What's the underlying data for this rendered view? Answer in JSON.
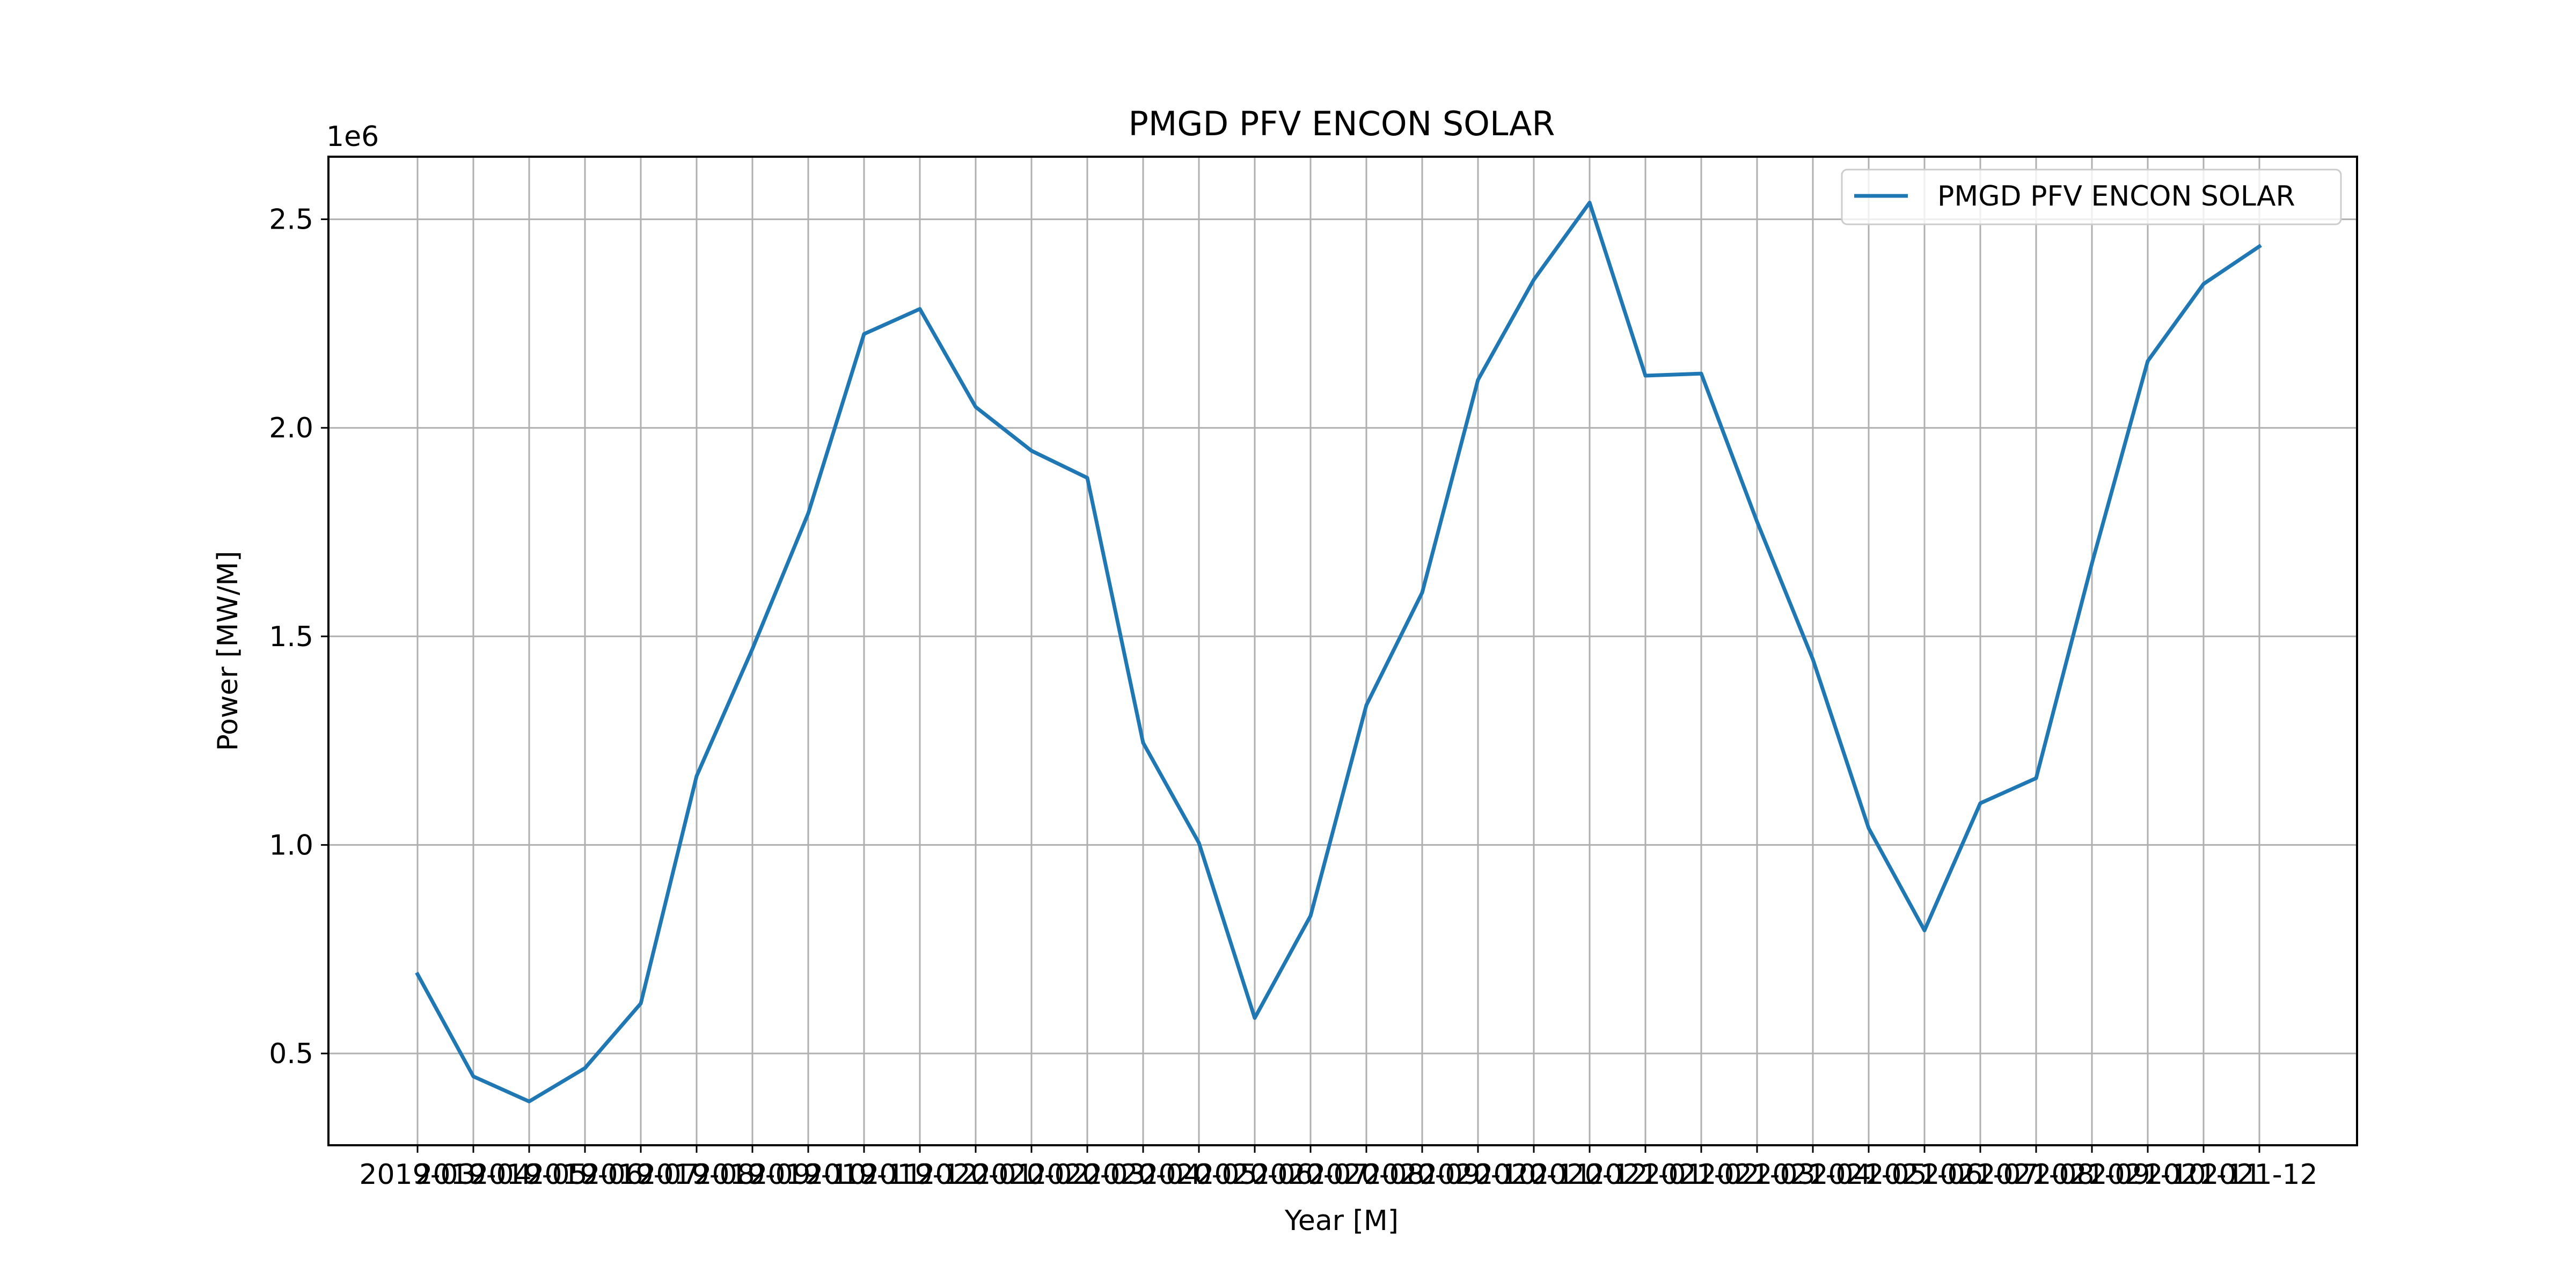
{
  "chart_data": {
    "type": "line",
    "title": "PMGD PFV ENCON SOLAR",
    "xlabel": "Year [M]",
    "ylabel": "Power [MW/M]",
    "y_offset_label": "1e6",
    "y_multiplier": 1000000,
    "ylim": [
      280000,
      2650000
    ],
    "yticks": [
      500000,
      1000000,
      1500000,
      2000000,
      2500000
    ],
    "ytick_labels": [
      "0.5",
      "1.0",
      "1.5",
      "2.0",
      "2.5"
    ],
    "grid": true,
    "legend_position": "upper right",
    "colors": {
      "series": "#1f77b4",
      "grid": "#b0b0b0"
    },
    "x": [
      "2019-03",
      "2019-04",
      "2019-05",
      "2019-06",
      "2019-07",
      "2019-08",
      "2019-09",
      "2019-10",
      "2019-11",
      "2019-12",
      "2020-01",
      "2020-02",
      "2020-03",
      "2020-04",
      "2020-05",
      "2020-06",
      "2020-07",
      "2020-08",
      "2020-09",
      "2020-10",
      "2020-11",
      "2020-12",
      "2021-01",
      "2021-02",
      "2021-03",
      "2021-04",
      "2021-05",
      "2021-06",
      "2021-07",
      "2021-08",
      "2021-09",
      "2021-10",
      "2021-11",
      "2021-12"
    ],
    "series": [
      {
        "name": "PMGD PFV ENCON SOLAR",
        "values": [
          690000,
          445000,
          385000,
          465000,
          620000,
          1165000,
          1470000,
          1795000,
          2225000,
          2285000,
          2050000,
          1945000,
          1880000,
          1245000,
          1005000,
          585000,
          830000,
          1335000,
          1605000,
          2115000,
          2355000,
          2540000,
          2125000,
          2130000,
          1775000,
          1445000,
          1040000,
          795000,
          1100000,
          1160000,
          1675000,
          2160000,
          2345000,
          2435000
        ]
      }
    ]
  }
}
